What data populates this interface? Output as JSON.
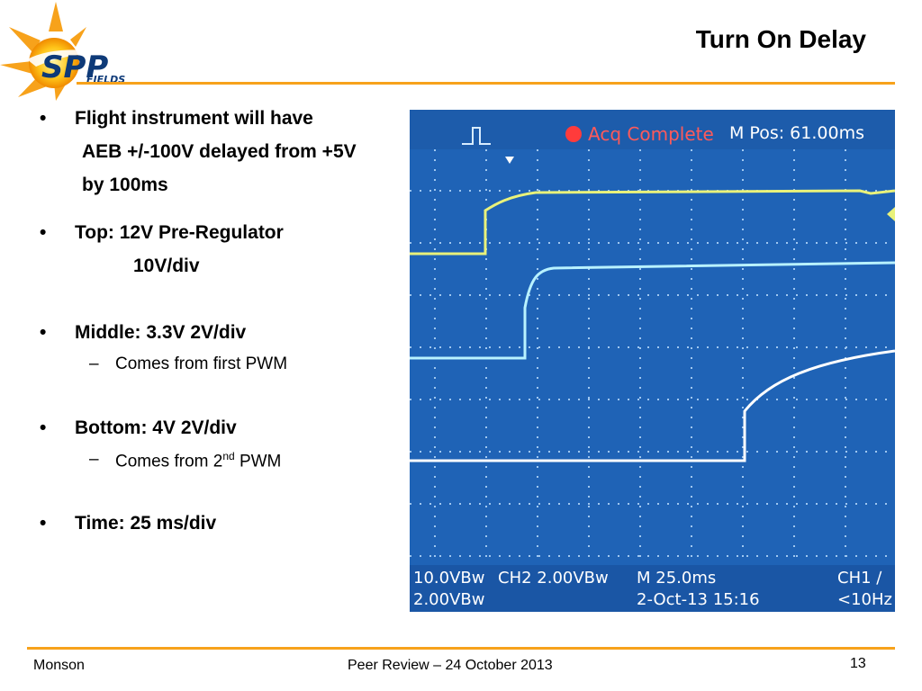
{
  "slide": {
    "title": "Turn On Delay",
    "logo_text_main": "SPP",
    "logo_text_sub": "FIELDS"
  },
  "bullets": [
    {
      "lines": [
        "Flight instrument will have",
        "AEB +/-100V delayed from +5V",
        "by 100ms"
      ]
    },
    {
      "lines": [
        "Top:  12V Pre-Regulator",
        "10V/div"
      ]
    },
    {
      "lines": [
        "Middle:  3.3V  2V/div"
      ],
      "sub": {
        "text": "Comes from first PWM"
      }
    },
    {
      "lines": [
        "Bottom:  4V  2V/div"
      ],
      "sub": {
        "prefix": "Comes from 2",
        "sup": "nd",
        "suffix": " PWM"
      }
    },
    {
      "lines": [
        "Time:  25 ms/div"
      ]
    }
  ],
  "scope": {
    "status": "Acq Complete",
    "mpos": "M Pos: 61.00ms",
    "ch1": "10.0VBᴡ",
    "ch2": "CH2  2.00VBᴡ",
    "timebase": "M 25.0ms",
    "trigger": "CH1 ∕",
    "ch3": "2.00VBᴡ",
    "date": "2-Oct-13 15:16",
    "freq": "<10Hz"
  },
  "footer": {
    "author": "Monson",
    "event": "Peer Review – 24 October 2013",
    "page": "13"
  },
  "colors": {
    "accent": "#f7a21b",
    "scope_bg": "#1e5fb0",
    "trace_yellow": "#e9f27a",
    "trace_cyan": "#b8f2ff",
    "trace_white": "#ffffff",
    "status_red": "#ff3b3b"
  }
}
